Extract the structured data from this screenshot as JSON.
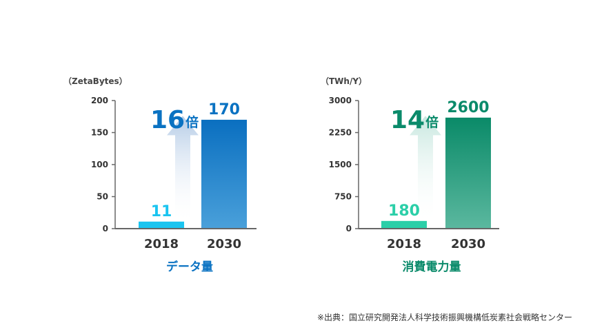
{
  "colors": {
    "blue_dark": "#0a72c2",
    "blue_light": "#1ac4f0",
    "green_dark": "#0a8a6a",
    "green_light": "#2bcfa8",
    "axis": "#666666"
  },
  "chart_data": [
    {
      "type": "bar",
      "unit_label": "（ZetaBytes）",
      "categories": [
        "2018",
        "2030"
      ],
      "values": [
        11,
        170
      ],
      "data_labels": [
        "11",
        "170"
      ],
      "ylim": [
        0,
        200
      ],
      "yticks": [
        0,
        50,
        100,
        150,
        200
      ],
      "ytick_labels": [
        "0",
        "50",
        "100",
        "150",
        "200"
      ],
      "multiplier": {
        "number": "16",
        "suffix": "倍"
      },
      "caption": "データ量",
      "theme": "blue"
    },
    {
      "type": "bar",
      "unit_label": "（TWh/Y）",
      "categories": [
        "2018",
        "2030"
      ],
      "values": [
        180,
        2600
      ],
      "data_labels": [
        "180",
        "2600"
      ],
      "ylim": [
        0,
        3000
      ],
      "yticks": [
        0,
        750,
        1500,
        2250,
        3000
      ],
      "ytick_labels": [
        "0",
        "750",
        "1500",
        "2250",
        "3000"
      ],
      "multiplier": {
        "number": "14",
        "suffix": "倍"
      },
      "caption": "消費電力量",
      "theme": "green"
    }
  ],
  "source": "※出典：国立研究開発法人科学技術振興機構低炭素社会戦略センター"
}
